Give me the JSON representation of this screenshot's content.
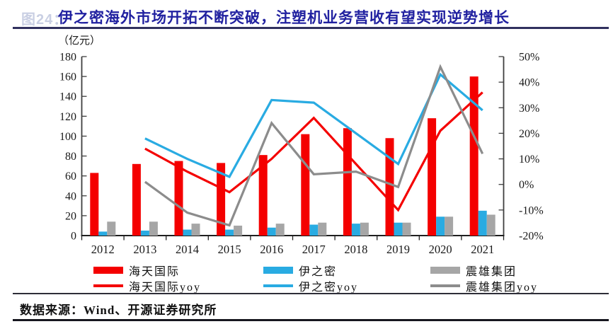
{
  "figure_label": "图24：",
  "title": "伊之密海外市场开拓不断突破，注塑机业务营收有望实现逆势增长",
  "source": "数据来源：Wind、开源证券研究所",
  "chart_data": {
    "type": "bar+line",
    "categories": [
      "2012",
      "2013",
      "2014",
      "2015",
      "2016",
      "2017",
      "2018",
      "2019",
      "2020",
      "2021"
    ],
    "left_axis": {
      "title": "（亿元）",
      "min": 0,
      "max": 180,
      "step": 20
    },
    "right_axis": {
      "min": -20,
      "max": 50,
      "step": 10,
      "unit": "%"
    },
    "grid": "off",
    "legend_position": "bottom",
    "bar_series": [
      {
        "name": "海天国际",
        "color": "#f40000",
        "values": [
          63,
          72,
          75,
          73,
          81,
          102,
          108,
          98,
          118,
          160
        ]
      },
      {
        "name": "伊之密",
        "color": "#29abe2",
        "values": [
          4,
          5,
          6,
          6,
          8,
          11,
          12,
          13,
          19,
          25
        ]
      },
      {
        "name": "震雄集团",
        "color": "#a6a6a6",
        "values": [
          14,
          14,
          12,
          10,
          12,
          13,
          13,
          13,
          19,
          21
        ]
      }
    ],
    "line_series": [
      {
        "name": "海天国际yoy",
        "color": "#f40000",
        "values": [
          null,
          14,
          5,
          -3,
          10,
          26,
          8,
          -10,
          21,
          36
        ]
      },
      {
        "name": "伊之密yoy",
        "color": "#29abe2",
        "values": [
          null,
          18,
          10,
          3,
          33,
          32,
          20,
          8,
          43,
          29
        ]
      },
      {
        "name": "震雄集团yoy",
        "color": "#8c8c8c",
        "values": [
          null,
          1,
          -11,
          -16,
          24,
          4,
          5,
          -1,
          46,
          12
        ]
      }
    ]
  }
}
